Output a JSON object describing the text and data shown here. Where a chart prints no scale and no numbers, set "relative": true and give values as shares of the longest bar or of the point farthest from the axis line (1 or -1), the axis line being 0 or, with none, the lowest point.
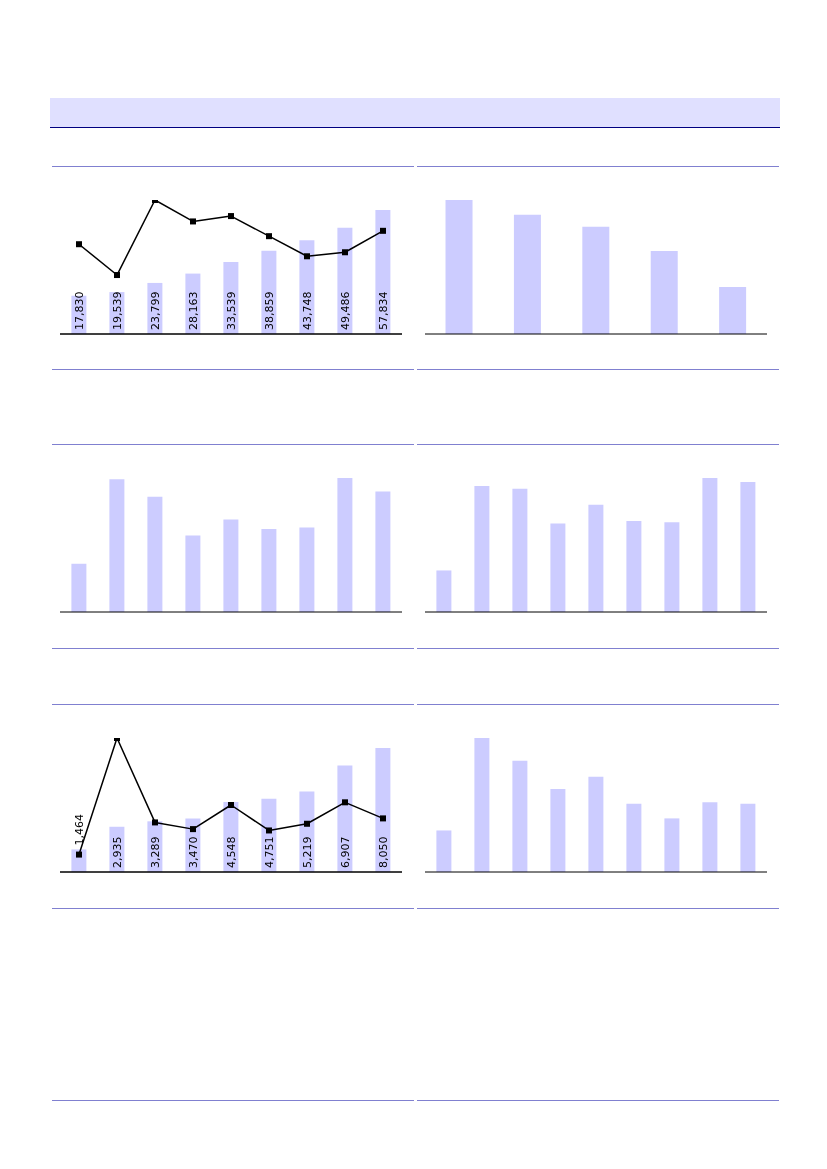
{
  "chart_data": [
    {
      "type": "bar",
      "categories": [
        null,
        null,
        null,
        null,
        null,
        null,
        null,
        null,
        null
      ],
      "color": "#ccccff",
      "values": [
        17830,
        19539,
        23799,
        28163,
        33539,
        38859,
        43748,
        49486,
        57834
      ],
      "value_labels": [
        "17,830",
        "19,539",
        "23,799",
        "28,163",
        "33,539",
        "38,859",
        "43,748",
        "49,486",
        "57,834"
      ]
    },
    {
      "type": "line",
      "relative": true,
      "categories": [
        null,
        null,
        null,
        null,
        null,
        null,
        null,
        null,
        null
      ],
      "marker": "square",
      "color": "#000000",
      "values": [
        0.67,
        0.44,
        1,
        0.84,
        0.88,
        0.73,
        0.58,
        0.61,
        0.77
      ]
    },
    {
      "type": "bar",
      "relative": true,
      "categories": [
        null,
        null,
        null,
        null,
        null
      ],
      "color": "#ccccff",
      "values": [
        1,
        0.89,
        0.8,
        0.62,
        0.35
      ]
    },
    {
      "type": "bar",
      "relative": true,
      "categories": [
        null,
        null,
        null,
        null,
        null,
        null,
        null,
        null,
        null
      ],
      "color": "#ccccff",
      "values": [
        0.36,
        0.99,
        0.86,
        0.57,
        0.69,
        0.62,
        0.63,
        1,
        0.9
      ]
    },
    {
      "type": "bar",
      "relative": true,
      "categories": [
        null,
        null,
        null,
        null,
        null,
        null,
        null,
        null,
        null
      ],
      "color": "#ccccff",
      "values": [
        0.31,
        0.94,
        0.92,
        0.66,
        0.8,
        0.68,
        0.67,
        1,
        0.97
      ]
    },
    {
      "type": "bar",
      "categories": [
        null,
        null,
        null,
        null,
        null,
        null,
        null,
        null,
        null
      ],
      "color": "#ccccff",
      "values": [
        1464,
        2935,
        3289,
        3470,
        4548,
        4751,
        5219,
        6907,
        8050
      ],
      "value_labels": [
        "1,464",
        "2,935",
        "3,289",
        "3,470",
        "4,548",
        "4,751",
        "5,219",
        "6,907",
        "8,050"
      ]
    },
    {
      "type": "line",
      "relative": true,
      "categories": [
        null,
        null,
        null,
        null,
        null,
        null,
        null,
        null,
        null
      ],
      "marker": "square",
      "color": "#000000",
      "values": [
        0.13,
        1,
        0.37,
        0.32,
        0.5,
        0.31,
        0.36,
        0.52,
        0.4
      ]
    },
    {
      "type": "bar",
      "relative": true,
      "categories": [
        null,
        null,
        null,
        null,
        null,
        null,
        null,
        null,
        null
      ],
      "color": "#ccccff",
      "values": [
        0.31,
        1,
        0.83,
        0.62,
        0.71,
        0.51,
        0.4,
        0.52,
        0.51
      ]
    }
  ]
}
